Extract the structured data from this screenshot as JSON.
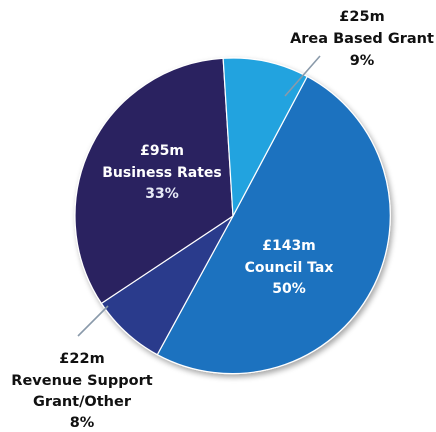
{
  "chart_data": {
    "type": "pie",
    "slices": [
      {
        "amount": "£143m",
        "label": "Council Tax",
        "percent": "50%",
        "value": 143,
        "color": "#1e72bf"
      },
      {
        "amount": "£22m",
        "label": "Revenue Support Grant/Other",
        "label_lines": [
          "Revenue Support",
          "Grant/Other"
        ],
        "percent": "8%",
        "value": 22,
        "color": "#2a3a8c"
      },
      {
        "amount": "£95m",
        "label": "Business Rates",
        "percent": "33%",
        "value": 95,
        "color": "#2a2160"
      },
      {
        "amount": "£25m",
        "label": "Area Based Grant",
        "percent": "9%",
        "value": 25,
        "color": "#23a3df"
      }
    ],
    "legend": "none"
  }
}
